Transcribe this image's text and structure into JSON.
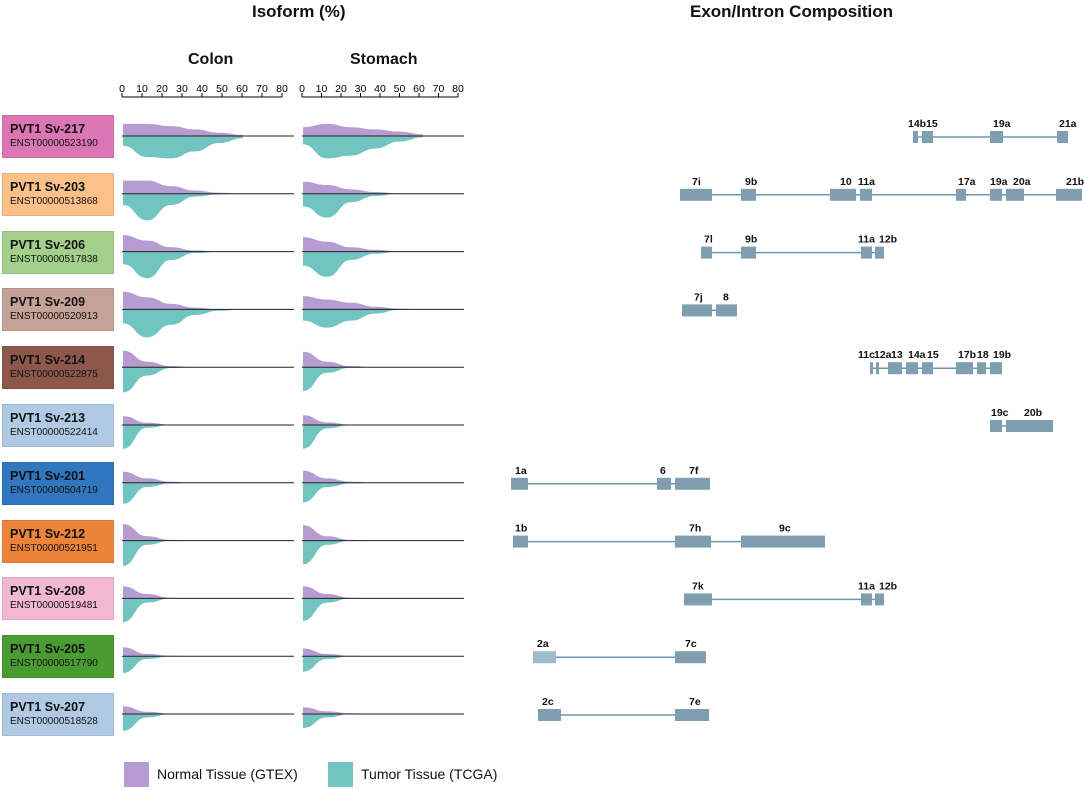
{
  "headers": {
    "isoform_title": "Isoform (%)",
    "composition_title": "Exon/Intron Composition",
    "tissues": [
      "Colon",
      "Stomach"
    ],
    "axis_ticks": [
      "0",
      "10",
      "20",
      "30",
      "40",
      "50",
      "60",
      "70",
      "80"
    ]
  },
  "colors": {
    "normal": "#b79bd3",
    "tumor": "#72c4c1",
    "exon": "#7f9fb0",
    "exon_light": "#9dbccb",
    "intron": "#6e97aa"
  },
  "isoforms": [
    {
      "name": "PVT1 Sv-217",
      "id": "ENST00000523190",
      "color": "#dc75b3",
      "colon": {
        "normal": [
          0.55,
          0.55,
          0.45,
          0.3,
          0.15,
          0.05
        ],
        "tumor": [
          0.35,
          0.75,
          0.8,
          0.55,
          0.25,
          0.08
        ]
      },
      "stomach": {
        "normal": [
          0.4,
          0.55,
          0.4,
          0.3,
          0.2,
          0.08
        ],
        "tumor": [
          0.3,
          0.8,
          0.7,
          0.45,
          0.2,
          0.05
        ]
      },
      "exons": [
        {
          "label": "14b"
        },
        {
          "label": "15"
        },
        {
          "label": "19a"
        },
        {
          "label": "21a"
        }
      ]
    },
    {
      "name": "PVT1 Sv-203",
      "id": "ENST00000513868",
      "color": "#fbc189",
      "colon": {
        "normal": [
          0.6,
          0.6,
          0.35,
          0.15,
          0.05,
          0.0
        ],
        "tumor": [
          0.4,
          0.95,
          0.4,
          0.1,
          0.02,
          0.0
        ]
      },
      "stomach": {
        "normal": [
          0.55,
          0.4,
          0.2,
          0.08,
          0.02,
          0.0
        ],
        "tumor": [
          0.45,
          0.85,
          0.3,
          0.08,
          0.0,
          0.0
        ]
      },
      "exons": [
        {
          "label": "7i"
        },
        {
          "label": "9b"
        },
        {
          "label": "10"
        },
        {
          "label": "11a"
        },
        {
          "label": "17a"
        },
        {
          "label": "19a"
        },
        {
          "label": "20a"
        },
        {
          "label": "21b"
        }
      ]
    },
    {
      "name": "PVT1 Sv-206",
      "id": "ENST00000517838",
      "color": "#a3cf8c",
      "colon": {
        "normal": [
          0.75,
          0.5,
          0.2,
          0.05,
          0.0,
          0.0
        ],
        "tumor": [
          0.45,
          0.95,
          0.3,
          0.05,
          0.0,
          0.0
        ]
      },
      "stomach": {
        "normal": [
          0.65,
          0.45,
          0.2,
          0.08,
          0.02,
          0.0
        ],
        "tumor": [
          0.5,
          0.9,
          0.3,
          0.08,
          0.0,
          0.0
        ]
      },
      "exons": [
        {
          "label": "7l"
        },
        {
          "label": "9b"
        },
        {
          "label": "11a"
        },
        {
          "label": "12b"
        }
      ]
    },
    {
      "name": "PVT1 Sv-209",
      "id": "ENST00000520913",
      "color": "#c4a295",
      "colon": {
        "normal": [
          0.8,
          0.55,
          0.25,
          0.08,
          0.0,
          0.0
        ],
        "tumor": [
          0.5,
          1.0,
          0.55,
          0.2,
          0.05,
          0.0
        ]
      },
      "stomach": {
        "normal": [
          0.6,
          0.45,
          0.3,
          0.12,
          0.03,
          0.0
        ],
        "tumor": [
          0.4,
          0.65,
          0.4,
          0.15,
          0.02,
          0.0
        ]
      },
      "exons": [
        {
          "label": "7j"
        },
        {
          "label": "8"
        }
      ]
    },
    {
      "name": "PVT1 Sv-214",
      "id": "ENST00000522875",
      "color": "#8e574c",
      "colon": {
        "normal": [
          0.75,
          0.25,
          0.05,
          0.0,
          0.0,
          0.0
        ],
        "tumor": [
          0.9,
          0.3,
          0.03,
          0.0,
          0.0,
          0.0
        ]
      },
      "stomach": {
        "normal": [
          0.7,
          0.25,
          0.05,
          0.0,
          0.0,
          0.0
        ],
        "tumor": [
          0.85,
          0.2,
          0.02,
          0.0,
          0.0,
          0.0
        ]
      },
      "exons": [
        {
          "label": "11c"
        },
        {
          "label": "12a"
        },
        {
          "label": "13"
        },
        {
          "label": "14a"
        },
        {
          "label": "15"
        },
        {
          "label": "17b"
        },
        {
          "label": "18"
        },
        {
          "label": "19b"
        }
      ]
    },
    {
      "name": "PVT1 Sv-213",
      "id": "ENST00000522414",
      "color": "#b0c9e5",
      "colon": {
        "normal": [
          0.4,
          0.1,
          0.02,
          0.0,
          0.0,
          0.0
        ],
        "tumor": [
          0.85,
          0.1,
          0.0,
          0.0,
          0.0,
          0.0
        ]
      },
      "stomach": {
        "normal": [
          0.45,
          0.12,
          0.02,
          0.0,
          0.0,
          0.0
        ],
        "tumor": [
          0.85,
          0.12,
          0.0,
          0.0,
          0.0,
          0.0
        ]
      },
      "exons": [
        {
          "label": "19c"
        },
        {
          "label": "20b"
        }
      ]
    },
    {
      "name": "PVT1 Sv-201",
      "id": "ENST00000504719",
      "color": "#3077bf",
      "colon": {
        "normal": [
          0.5,
          0.2,
          0.05,
          0.0,
          0.0,
          0.0
        ],
        "tumor": [
          0.75,
          0.15,
          0.02,
          0.0,
          0.0,
          0.0
        ]
      },
      "stomach": {
        "normal": [
          0.55,
          0.2,
          0.05,
          0.0,
          0.0,
          0.0
        ],
        "tumor": [
          0.7,
          0.15,
          0.02,
          0.0,
          0.0,
          0.0
        ]
      },
      "exons": [
        {
          "label": "1a"
        },
        {
          "label": "6"
        },
        {
          "label": "7f"
        }
      ]
    },
    {
      "name": "PVT1 Sv-212",
      "id": "ENST00000521951",
      "color": "#ed8239",
      "colon": {
        "normal": [
          0.75,
          0.2,
          0.03,
          0.0,
          0.0,
          0.0
        ],
        "tumor": [
          0.9,
          0.15,
          0.0,
          0.0,
          0.0,
          0.0
        ]
      },
      "stomach": {
        "normal": [
          0.7,
          0.2,
          0.03,
          0.0,
          0.0,
          0.0
        ],
        "tumor": [
          0.85,
          0.15,
          0.0,
          0.0,
          0.0,
          0.0
        ]
      },
      "exons": [
        {
          "label": "1b"
        },
        {
          "label": "7h"
        },
        {
          "label": "9c"
        }
      ]
    },
    {
      "name": "PVT1 Sv-208",
      "id": "ENST00000519481",
      "color": "#f2b7d1",
      "colon": {
        "normal": [
          0.55,
          0.2,
          0.03,
          0.0,
          0.0,
          0.0
        ],
        "tumor": [
          0.85,
          0.15,
          0.0,
          0.0,
          0.0,
          0.0
        ]
      },
      "stomach": {
        "normal": [
          0.55,
          0.2,
          0.03,
          0.0,
          0.0,
          0.0
        ],
        "tumor": [
          0.8,
          0.15,
          0.0,
          0.0,
          0.0,
          0.0
        ]
      },
      "exons": [
        {
          "label": "7k"
        },
        {
          "label": "11a"
        },
        {
          "label": "12b"
        }
      ]
    },
    {
      "name": "PVT1 Sv-205",
      "id": "ENST00000517790",
      "color": "#4b9b33",
      "colon": {
        "normal": [
          0.4,
          0.1,
          0.02,
          0.0,
          0.0,
          0.0
        ],
        "tumor": [
          0.6,
          0.1,
          0.0,
          0.0,
          0.0,
          0.0
        ]
      },
      "stomach": {
        "normal": [
          0.35,
          0.1,
          0.02,
          0.0,
          0.0,
          0.0
        ],
        "tumor": [
          0.55,
          0.1,
          0.0,
          0.0,
          0.0,
          0.0
        ]
      },
      "exons": [
        {
          "label": "2a"
        },
        {
          "label": "7c"
        }
      ]
    },
    {
      "name": "PVT1 Sv-207",
      "id": "ENST00000518528",
      "color": "#b0c9e5",
      "colon": {
        "normal": [
          0.35,
          0.1,
          0.02,
          0.0,
          0.0,
          0.0
        ],
        "tumor": [
          0.6,
          0.12,
          0.0,
          0.0,
          0.0,
          0.0
        ]
      },
      "stomach": {
        "normal": [
          0.3,
          0.12,
          0.03,
          0.0,
          0.0,
          0.0
        ],
        "tumor": [
          0.5,
          0.12,
          0.0,
          0.0,
          0.0,
          0.0
        ]
      },
      "exons": [
        {
          "label": "2c"
        },
        {
          "label": "7e"
        }
      ]
    }
  ],
  "legend": {
    "normal_label": "Normal Tissue (GTEX)",
    "tumor_label": "Tumor Tissue (TCGA)"
  }
}
